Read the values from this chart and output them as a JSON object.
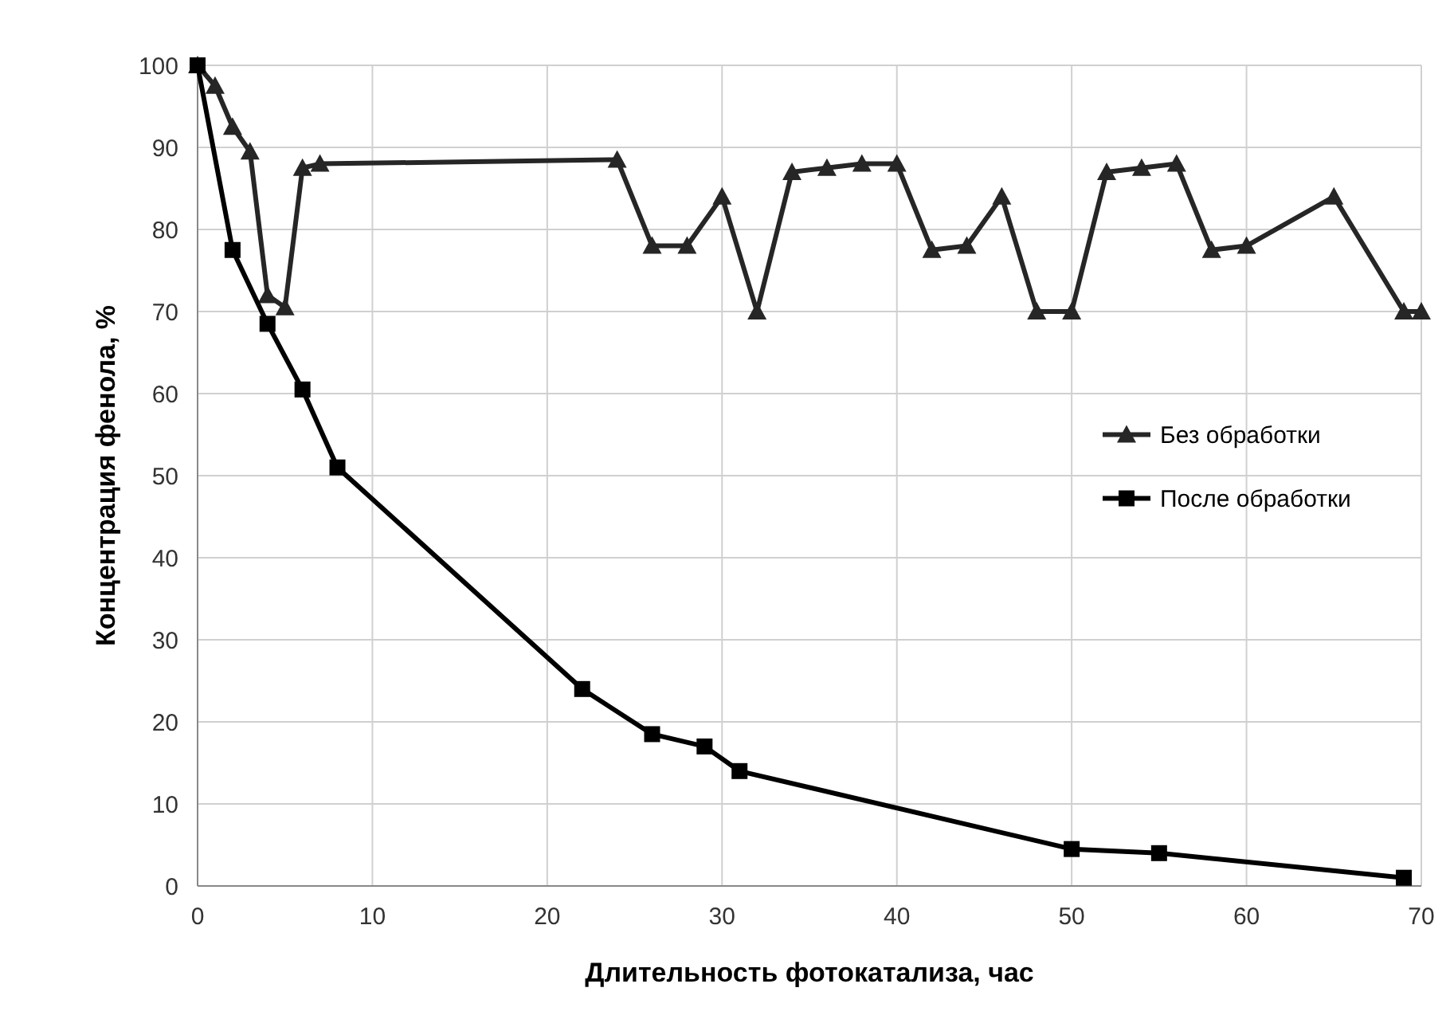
{
  "chart_data": {
    "type": "line",
    "xlabel": "Длительность фотокатализа, час",
    "ylabel": "Концентрация фенола, %",
    "xlim": [
      0,
      70
    ],
    "xticks": [
      0,
      10,
      20,
      30,
      40,
      50,
      60,
      70
    ],
    "ylim": [
      0,
      100
    ],
    "yticks": [
      0,
      10,
      20,
      30,
      40,
      50,
      60,
      70,
      80,
      90,
      100
    ],
    "grid": true,
    "legend": "right",
    "series": [
      {
        "name": "Без обработки",
        "color": "#262626",
        "marker": "triangle",
        "x": [
          0,
          1,
          2,
          3,
          4,
          5,
          6,
          7,
          24,
          26,
          28,
          30,
          32,
          34,
          36,
          38,
          40,
          42,
          44,
          46,
          48,
          50,
          52,
          54,
          56,
          58,
          60,
          65,
          69,
          70
        ],
        "values": [
          100,
          97.5,
          92.5,
          89.5,
          72,
          70.5,
          87.5,
          88,
          88.5,
          78,
          78,
          84,
          70,
          87,
          87.5,
          88,
          88,
          77.5,
          78,
          84,
          70,
          70,
          87,
          87.5,
          88,
          77.5,
          78,
          84,
          70,
          70
        ]
      },
      {
        "name": "После обработки",
        "color": "#000000",
        "marker": "square",
        "x": [
          0,
          2,
          4,
          6,
          8,
          22,
          26,
          29,
          31,
          50,
          55,
          69
        ],
        "values": [
          100,
          77.5,
          68.5,
          60.5,
          51,
          24,
          18.5,
          17,
          14,
          4.5,
          4,
          1
        ]
      }
    ]
  }
}
